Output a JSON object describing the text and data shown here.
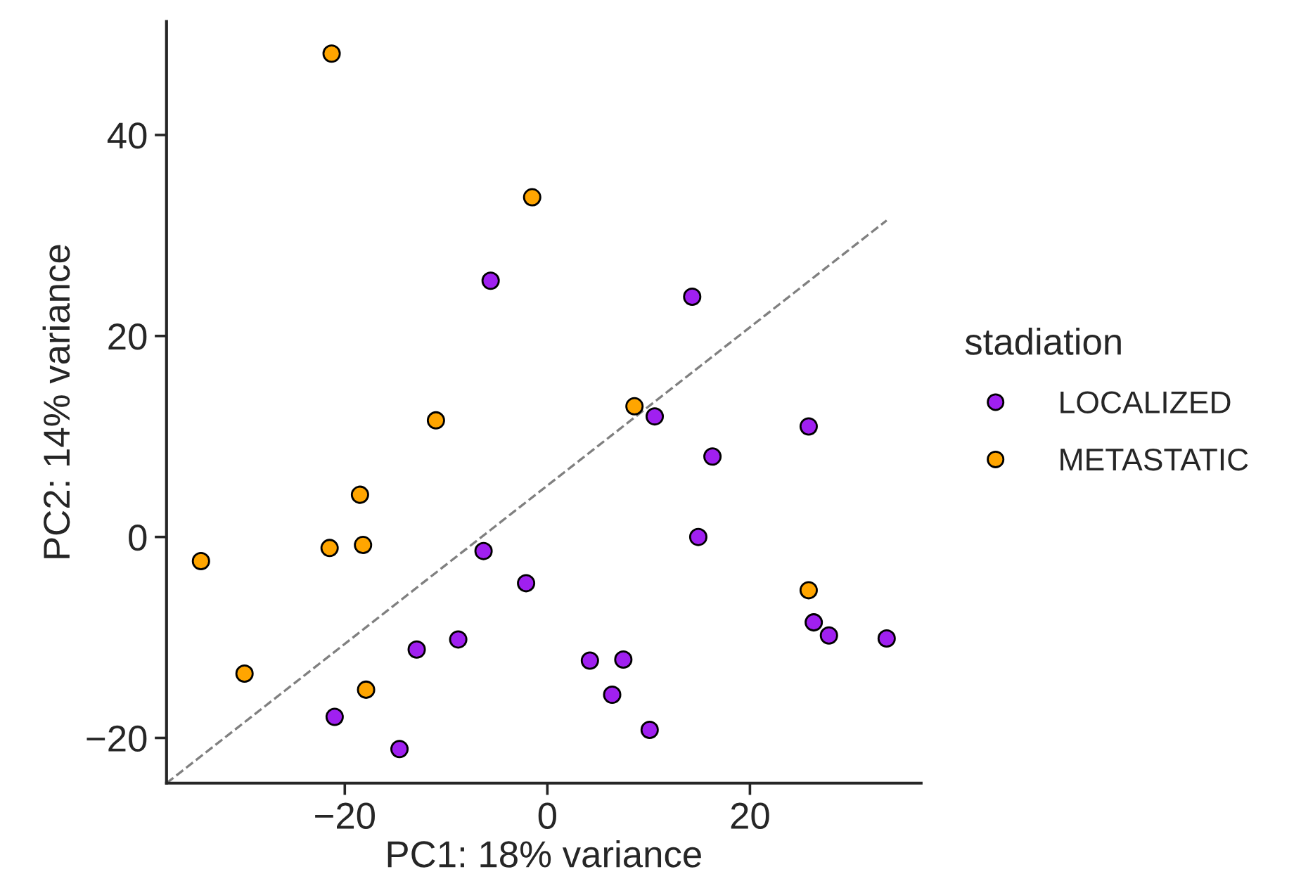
{
  "chart_data": {
    "type": "scatter",
    "xlabel": "PC1: 18% variance",
    "ylabel": "PC2: 14% variance",
    "legend_title": "stadiation",
    "legend": "right",
    "grid": false,
    "xlim": [
      -37.6,
      36.9
    ],
    "ylim": [
      -24.5,
      51.3
    ],
    "xticks": [
      {
        "value": -20,
        "label": "−20"
      },
      0,
      20
    ],
    "yticks": [
      {
        "value": -20,
        "label": "−20"
      },
      0,
      20,
      40
    ],
    "series": [
      {
        "name": "LOCALIZED",
        "color": "#a020f0",
        "marker": "circle",
        "x": [
          -5.6,
          14.3,
          10.6,
          16.3,
          25.8,
          14.9,
          -6.3,
          -2.1,
          -8.8,
          -12.9,
          4.2,
          7.5,
          6.4,
          26.3,
          27.8,
          33.5,
          -21.0,
          -14.6,
          10.1
        ],
        "values": [
          25.5,
          23.9,
          12.0,
          8.0,
          11.0,
          0,
          -1.4,
          -4.6,
          -10.2,
          -11.2,
          -12.3,
          -12.2,
          -15.7,
          -8.5,
          -9.8,
          -10.1,
          -17.9,
          -21.1,
          -19.2
        ]
      },
      {
        "name": "METASTATIC",
        "color": "#ffa500",
        "marker": "circle",
        "x": [
          -21.3,
          -1.5,
          -11.0,
          8.6,
          -18.5,
          -34.2,
          -21.5,
          -18.2,
          25.8,
          -29.9,
          -17.9
        ],
        "values": [
          48.1,
          33.8,
          11.6,
          13.0,
          4.2,
          -2.4,
          -1.1,
          -0.8,
          -5.3,
          -13.6,
          -15.2
        ]
      },
      {
        "type": "line",
        "color": "#808080",
        "line_style": "dashed",
        "marker": "none",
        "x": [
          -37.6,
          33.5
        ],
        "values": [
          -24.5,
          31.5
        ]
      }
    ]
  }
}
